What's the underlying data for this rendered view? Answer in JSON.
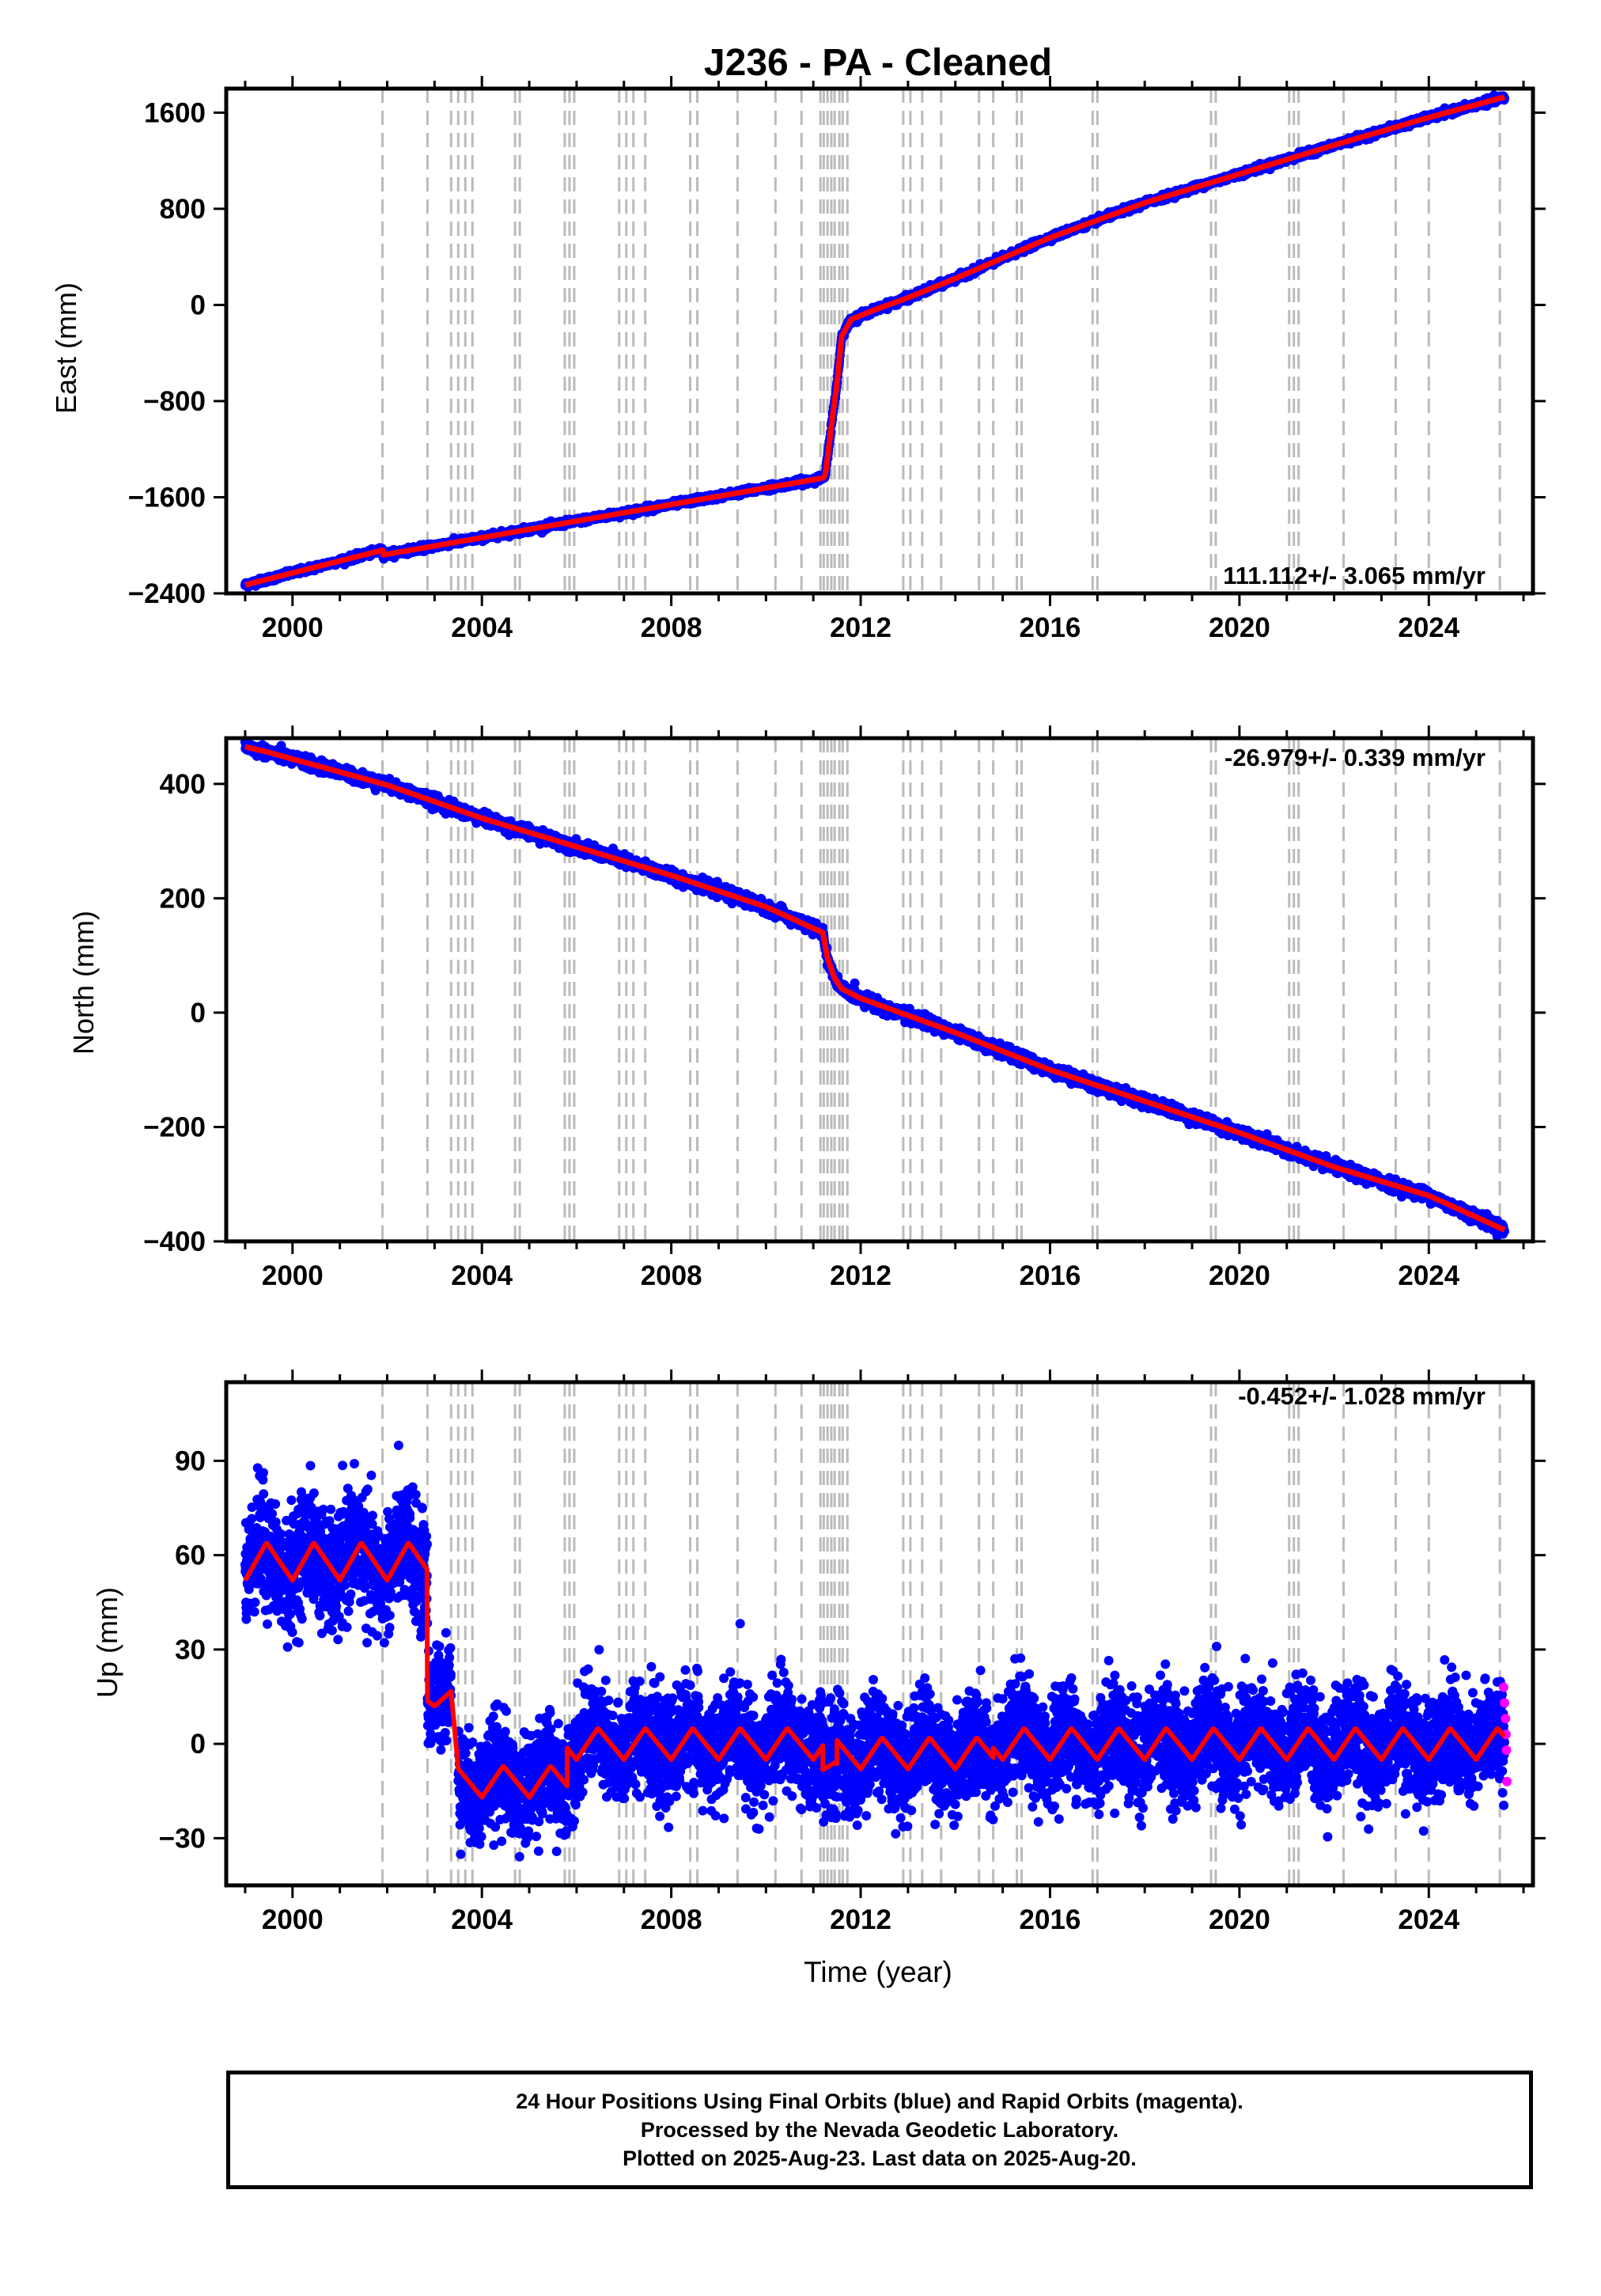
{
  "chart_data": {
    "type": "scatter",
    "title": "J236  - PA - Cleaned",
    "xlabel": "Time (year)",
    "xlim": [
      1998.6,
      2026.2
    ],
    "xticks": [
      2000,
      2004,
      2008,
      2012,
      2016,
      2020,
      2024
    ],
    "xtick_labels": [
      "2000",
      "2004",
      "2008",
      "2012",
      "2016",
      "2020",
      "2024"
    ],
    "colors": {
      "final": "#0000ff",
      "rapid": "#ff00ff",
      "model": "#ff0000",
      "events": "#bbbbbb"
    },
    "event_lines": [
      2001.9,
      2002.85,
      2003.35,
      2003.5,
      2003.65,
      2003.8,
      2004.7,
      2004.8,
      2005.75,
      2005.85,
      2005.95,
      2006.9,
      2007.05,
      2007.2,
      2007.45,
      2008.4,
      2008.55,
      2009.4,
      2010.2,
      2010.75,
      2011.15,
      2011.22,
      2011.3,
      2011.38,
      2011.45,
      2011.55,
      2011.62,
      2011.72,
      2012.9,
      2013.05,
      2013.3,
      2013.7,
      2014.5,
      2014.8,
      2015.3,
      2015.4,
      2016.9,
      2017.0,
      2019.4,
      2019.5,
      2021.05,
      2021.15,
      2021.25,
      2022.2,
      2023.3,
      2024.0,
      2025.5
    ],
    "panels": [
      {
        "ylabel": "East (mm)",
        "ylim": [
          -2400,
          1800
        ],
        "yticks": [
          -2400,
          -1600,
          -800,
          0,
          800,
          1600
        ],
        "ytick_labels": [
          "−2400",
          "−1600",
          "−800",
          "0",
          "800",
          "1600"
        ],
        "rate_label": "111.112+/- 3.065 mm/yr",
        "series": [
          {
            "role": "final",
            "x": [
              1999.0,
              2001.9,
              2001.91,
              2011.2,
              2011.25,
              2011.4,
              2011.5,
              2011.6,
              2011.8,
              2012.3,
              2013.0,
              2014.0,
              2016.0,
              2018.0,
              2020.0,
              2022.0,
              2024.0,
              2025.6
            ],
            "y": [
              -2330,
              -2040,
              -2080,
              -1440,
              -1420,
              -950,
              -650,
              -260,
              -120,
              -40,
              60,
              220,
              560,
              850,
              1090,
              1330,
              1560,
              1730
            ]
          }
        ],
        "noise": 12
      },
      {
        "ylabel": "North (mm)",
        "ylim": [
          -400,
          480
        ],
        "yticks": [
          -400,
          -200,
          0,
          200,
          400
        ],
        "ytick_labels": [
          "−400",
          "−200",
          "0",
          "200",
          "400"
        ],
        "rate_label": "-26.979+/- 0.339 mm/yr",
        "series": [
          {
            "role": "final",
            "x": [
              1999.0,
              1999.5,
              2002.0,
              2004.0,
              2006.0,
              2008.0,
              2010.0,
              2011.2,
              2011.3,
              2011.45,
              2011.6,
              2012.0,
              2014.0,
              2016.0,
              2018.0,
              2020.0,
              2022.0,
              2024.0,
              2025.6
            ],
            "y": [
              465,
              455,
              398,
              340,
              290,
              240,
              185,
              140,
              95,
              60,
              42,
              25,
              -35,
              -100,
              -155,
              -210,
              -270,
              -320,
              -380
            ]
          }
        ],
        "noise": 5
      },
      {
        "ylabel": "Up (mm)",
        "ylim": [
          -45,
          115
        ],
        "yticks": [
          -30,
          0,
          30,
          60,
          90
        ],
        "ytick_labels": [
          "−30",
          "0",
          "30",
          "60",
          "90"
        ],
        "rate_label": "-0.452+/- 1.028 mm/yr",
        "segments": [
          {
            "x": [
              1999.0,
              2002.85
            ],
            "mean": 58,
            "amplitude": 6,
            "scatter": 9
          },
          {
            "x": [
              2002.85,
              2003.35
            ],
            "mean": 15,
            "amplitude": 3,
            "scatter": 8
          },
          {
            "x": [
              2003.5,
              2005.8
            ],
            "mean": -12,
            "amplitude": 5,
            "scatter": 8
          },
          {
            "x": [
              2005.8,
              2011.2
            ],
            "mean": 0,
            "amplitude": 5,
            "scatter": 8
          },
          {
            "x": [
              2011.2,
              2011.5
            ],
            "mean": -8,
            "amplitude": 2,
            "scatter": 8
          },
          {
            "x": [
              2011.5,
              2014.8
            ],
            "mean": -3,
            "amplitude": 5,
            "scatter": 8
          },
          {
            "x": [
              2014.8,
              2025.6
            ],
            "mean": 0,
            "amplitude": 5,
            "scatter": 8
          }
        ],
        "rapid_points": {
          "x": [
            2025.58,
            2025.6,
            2025.62,
            2025.63,
            2025.64,
            2025.65
          ],
          "y": [
            18,
            13,
            8,
            3,
            -2,
            -12
          ]
        }
      }
    ],
    "footer_lines": [
      "24 Hour Positions Using Final Orbits (blue) and Rapid Orbits (magenta).",
      "Processed by the Nevada Geodetic Laboratory.",
      "Plotted on 2025-Aug-23. Last data on 2025-Aug-20."
    ]
  }
}
